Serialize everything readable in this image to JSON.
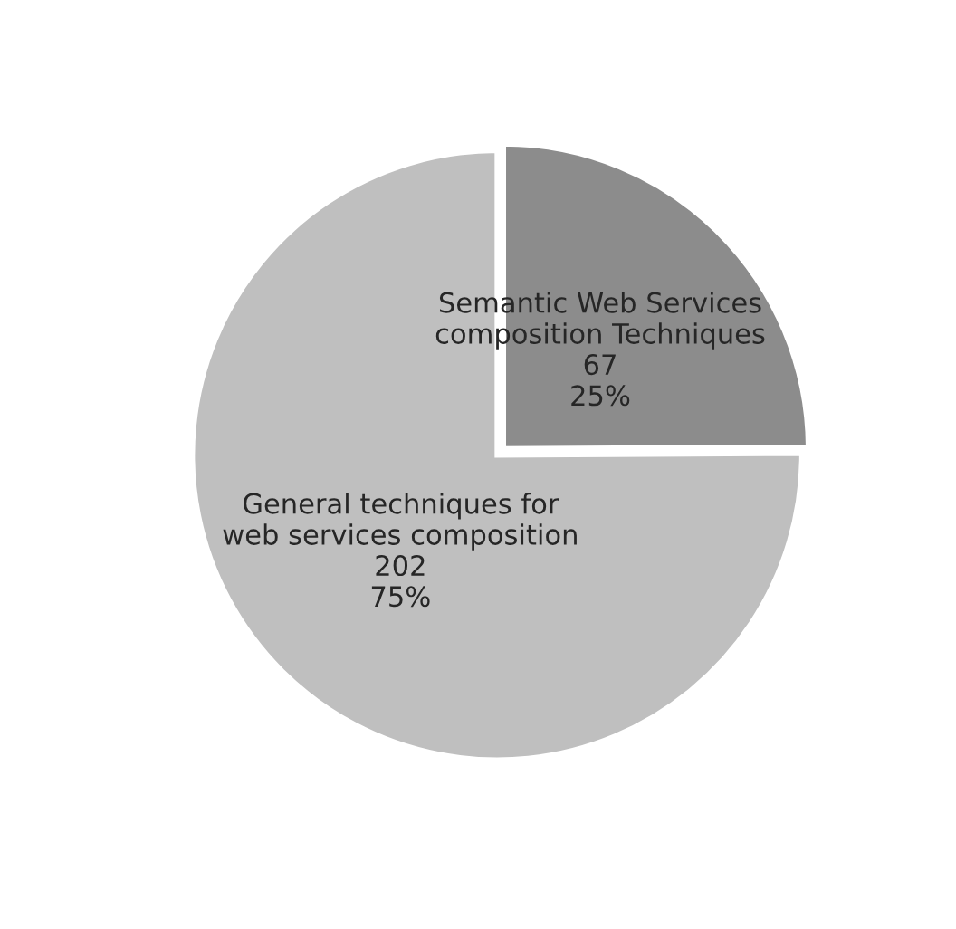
{
  "chart_data": {
    "type": "pie",
    "categories": [
      "Semantic Web Services\ncomposition Techniques",
      "General techniques for\nweb services composition"
    ],
    "values": [
      67,
      202
    ],
    "colors": [
      "#8c8c8c",
      "#bfbfbf"
    ],
    "value_labels": [
      "67\n25%",
      "202\n75%"
    ],
    "legend": false
  }
}
